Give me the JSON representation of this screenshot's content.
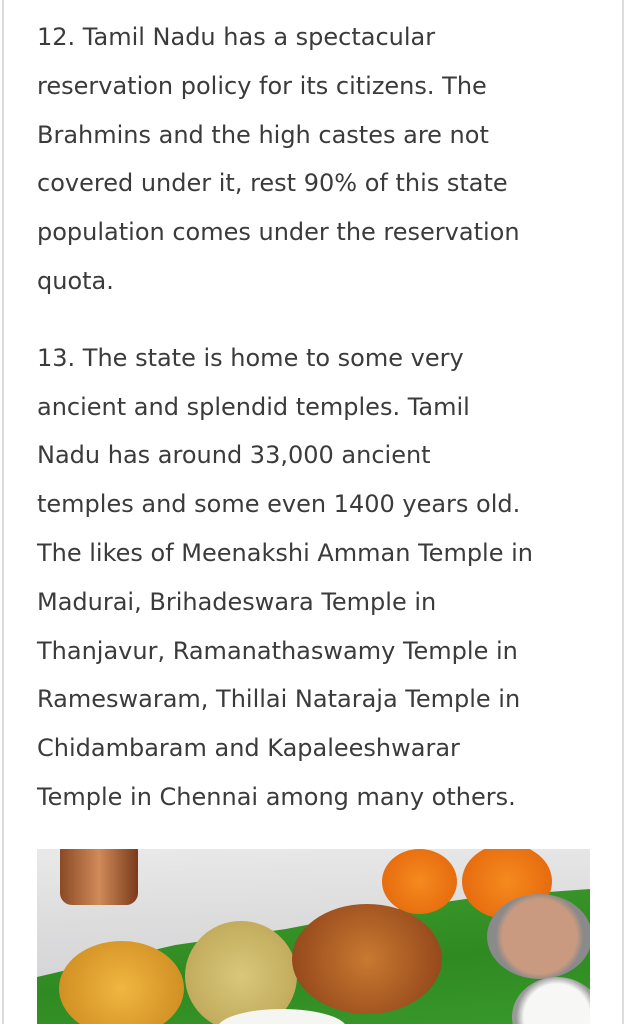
{
  "article": {
    "paragraphs": [
      {
        "lines": [
          "12. Tamil Nadu has a spectacular",
          "reservation policy for its citizens. The",
          "Brahmins and the high castes are not",
          "covered under it, rest 90% of this state",
          "population comes under the reservation",
          "quota."
        ]
      },
      {
        "lines": [
          "13. The state is home to some very",
          "ancient and splendid temples. Tamil",
          "Nadu has around 33,000 ancient",
          "temples and some even 1400 years old.",
          "The likes of Meenakshi Amman Temple in",
          "Madurai, Brihadeswara Temple in",
          "Thanjavur, Ramanathaswamy Temple in",
          "Rameswaram, Thillai Nataraja Temple in",
          "Chidambaram and Kapaleeshwarar",
          "Temple in Chennai among many others."
        ]
      }
    ]
  },
  "colors": {
    "text": "#3b3b3b",
    "border": "#dcdcdc",
    "leaf": "#3f9a2c",
    "marigold": "#f07a14"
  }
}
